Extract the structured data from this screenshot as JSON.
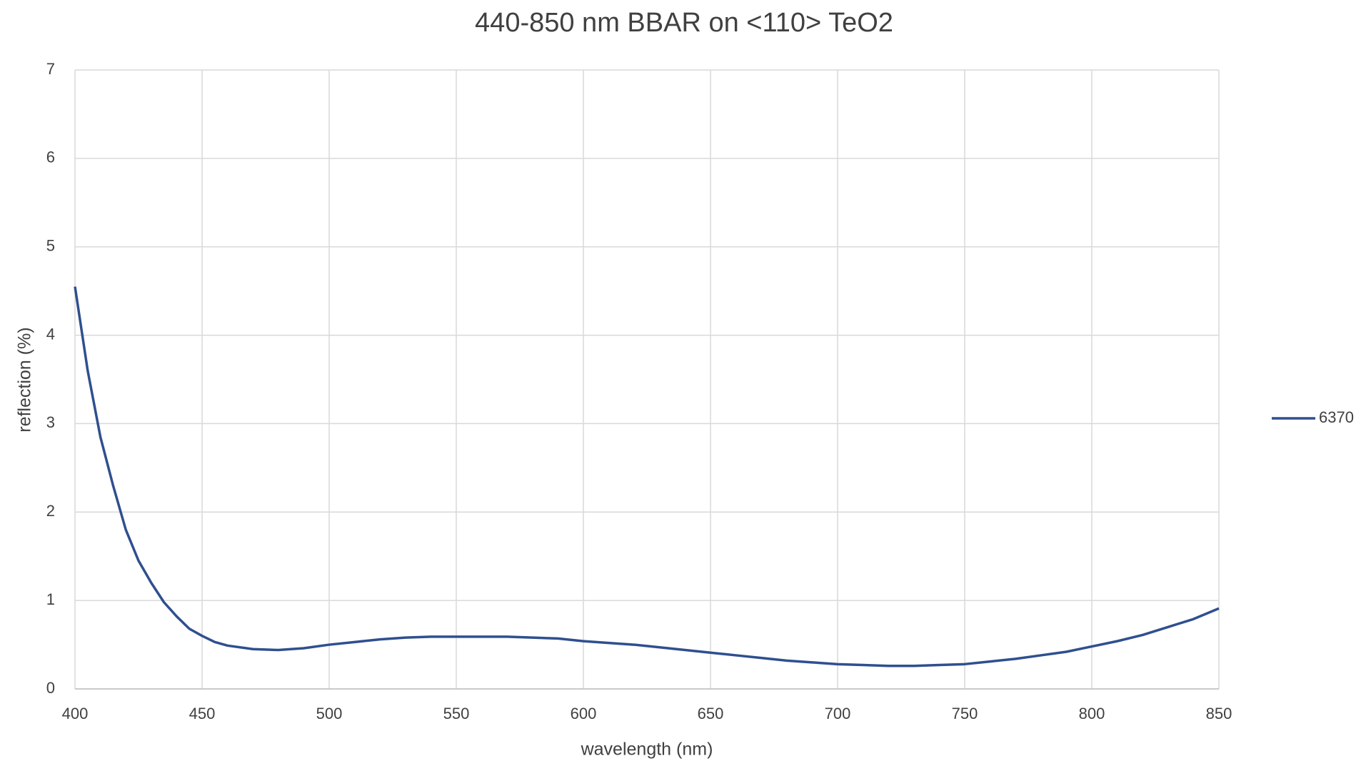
{
  "chart_data": {
    "type": "line",
    "title": "440-850 nm BBAR on <110> TeO2",
    "x_label": "wavelength (nm)",
    "y_label": "reflection (%)",
    "x": [
      400,
      405,
      410,
      415,
      420,
      425,
      430,
      435,
      440,
      445,
      450,
      455,
      460,
      470,
      480,
      490,
      500,
      510,
      520,
      530,
      540,
      550,
      560,
      570,
      580,
      590,
      600,
      610,
      620,
      630,
      640,
      650,
      660,
      670,
      680,
      690,
      700,
      710,
      720,
      730,
      740,
      750,
      760,
      770,
      780,
      790,
      800,
      810,
      820,
      830,
      840,
      850
    ],
    "series": [
      {
        "name": "6370",
        "color": "#2f4f8f",
        "values": [
          4.55,
          3.6,
          2.85,
          2.3,
          1.8,
          1.45,
          1.2,
          0.98,
          0.82,
          0.68,
          0.6,
          0.53,
          0.49,
          0.45,
          0.44,
          0.46,
          0.5,
          0.53,
          0.56,
          0.58,
          0.59,
          0.59,
          0.59,
          0.59,
          0.58,
          0.57,
          0.54,
          0.52,
          0.5,
          0.47,
          0.44,
          0.41,
          0.38,
          0.35,
          0.32,
          0.3,
          0.28,
          0.27,
          0.26,
          0.26,
          0.27,
          0.28,
          0.31,
          0.34,
          0.38,
          0.42,
          0.48,
          0.54,
          0.61,
          0.7,
          0.79,
          0.91
        ]
      }
    ],
    "xlim": [
      400,
      850
    ],
    "xticks": [
      400,
      450,
      500,
      550,
      600,
      650,
      700,
      750,
      800,
      850
    ],
    "ylim": [
      0,
      7
    ],
    "yticks": [
      0,
      1,
      2,
      3,
      4,
      5,
      6,
      7
    ],
    "grid": true,
    "legend": "right"
  }
}
